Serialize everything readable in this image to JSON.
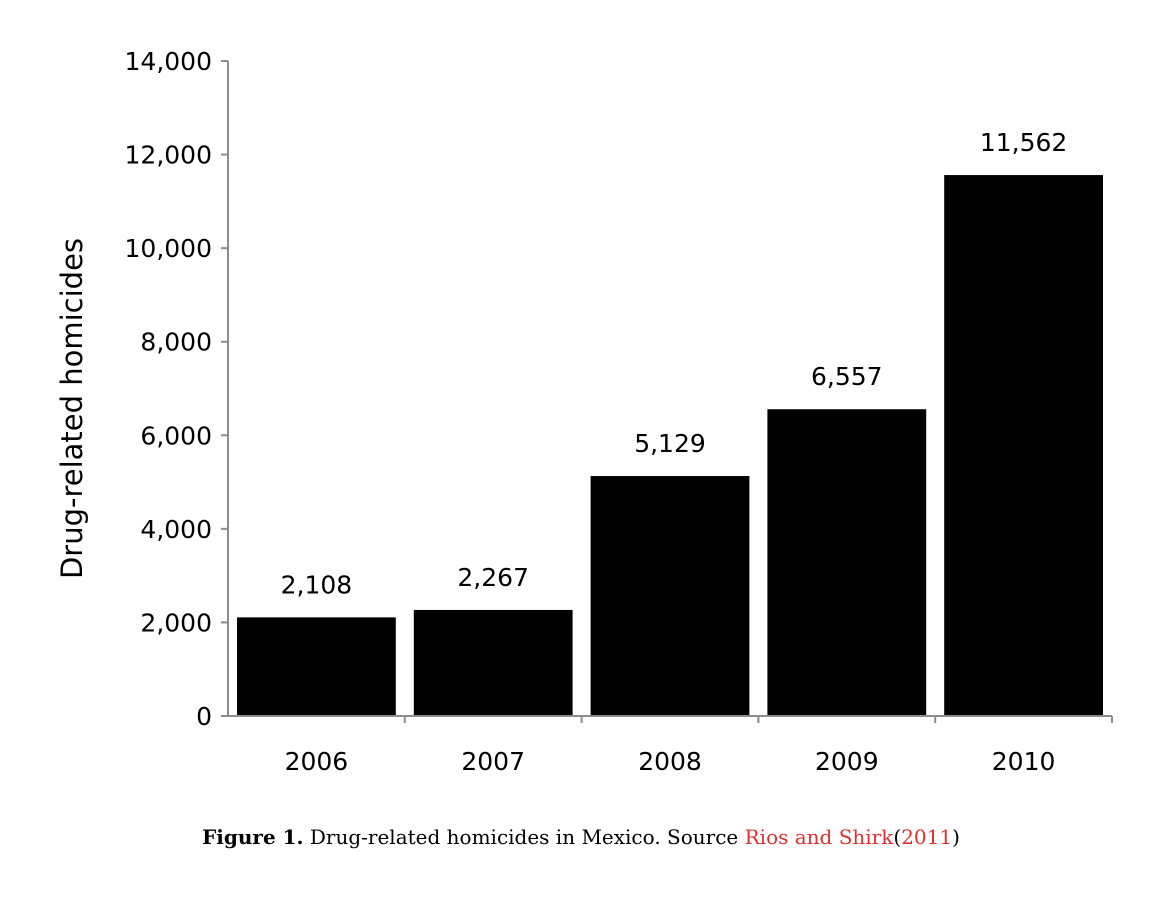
{
  "chart_data": {
    "type": "bar",
    "categories": [
      "2006",
      "2007",
      "2008",
      "2009",
      "2010"
    ],
    "values": [
      2108,
      2267,
      5129,
      6557,
      11562
    ],
    "data_labels": [
      "2,108",
      "2,267",
      "5,129",
      "6,557",
      "11,562"
    ],
    "ylabel": "Drug-related homicides",
    "xlabel": "",
    "ylim": [
      0,
      14000
    ],
    "yticks": [
      0,
      2000,
      4000,
      6000,
      8000,
      10000,
      12000,
      14000
    ],
    "ytick_labels": [
      "0",
      "2,000",
      "4,000",
      "6,000",
      "8,000",
      "10,000",
      "12,000",
      "14,000"
    ],
    "grid": false,
    "legend": "none",
    "bar_color": "#000000"
  },
  "caption": {
    "label": "Figure 1.",
    "text": "Drug-related homicides in Mexico. Source",
    "cite_authors": "Rios and Shirk",
    "cite_paren_open": "(",
    "cite_year": "2011",
    "cite_paren_close": ")",
    "cite_color": "#e03030"
  }
}
